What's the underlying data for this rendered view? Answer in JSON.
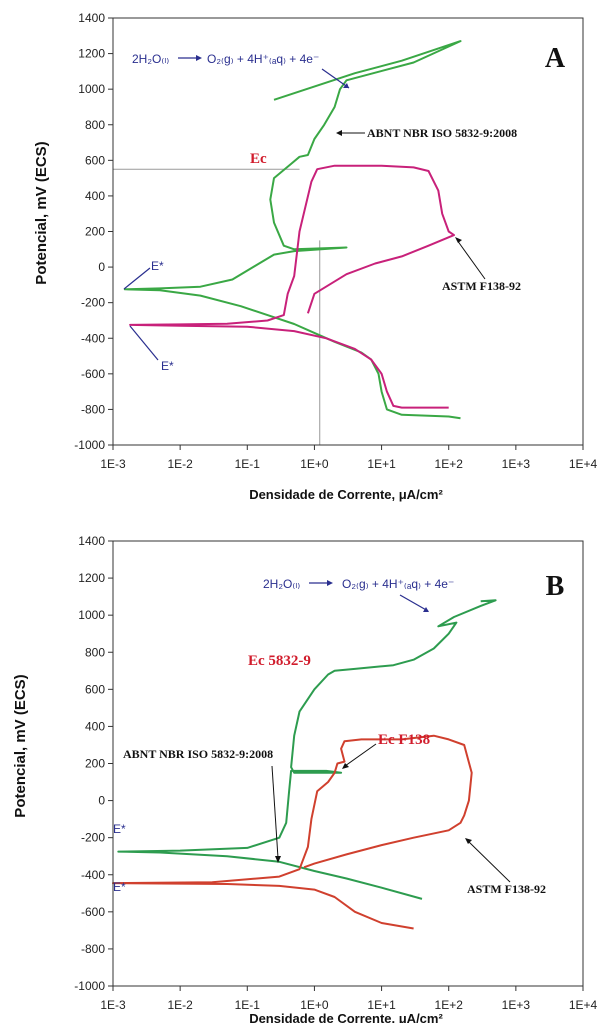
{
  "chart_data": [
    {
      "panel": "A",
      "type": "line",
      "panel_label": "A",
      "xlabel": "Densidade de Corrente, μA/cm²",
      "ylabel": "Potencial, mV (ECS)",
      "xscale": "log",
      "xlim": [
        0.001,
        10000
      ],
      "ylim": [
        -1000,
        1400
      ],
      "xtick_labels": [
        "1E-3",
        "1E-2",
        "1E-1",
        "1E+0",
        "1E+1",
        "1E+2",
        "1E+3",
        "1E+4"
      ],
      "ytick_labels": [
        "-1000",
        "-800",
        "-600",
        "-400",
        "-200",
        "0",
        "200",
        "400",
        "600",
        "800",
        "1000",
        "1200",
        "1400"
      ],
      "colors": {
        "green": "#3aa845",
        "magenta": "#c8217a",
        "guide": "#9a9a9a"
      },
      "series": [
        {
          "name": "ABNT NBR ISO 5832-9:2008",
          "color": "#3aa845",
          "points": [
            [
              150,
              -850
            ],
            [
              100,
              -840
            ],
            [
              20,
              -830
            ],
            [
              12,
              -800
            ],
            [
              10,
              -700
            ],
            [
              9,
              -600
            ],
            [
              7,
              -520
            ],
            [
              5,
              -480
            ],
            [
              2,
              -420
            ],
            [
              1,
              -370
            ],
            [
              0.5,
              -320
            ],
            [
              0.2,
              -270
            ],
            [
              0.08,
              -220
            ],
            [
              0.02,
              -160
            ],
            [
              0.005,
              -130
            ],
            [
              0.0015,
              -125
            ],
            [
              0.005,
              -120
            ],
            [
              0.02,
              -110
            ],
            [
              0.06,
              -70
            ],
            [
              0.15,
              20
            ],
            [
              0.25,
              70
            ],
            [
              0.5,
              90
            ],
            [
              3,
              110
            ],
            [
              0.5,
              100
            ],
            [
              0.35,
              120
            ],
            [
              0.25,
              250
            ],
            [
              0.22,
              380
            ],
            [
              0.25,
              500
            ],
            [
              0.45,
              580
            ],
            [
              0.6,
              620
            ],
            [
              0.8,
              630
            ],
            [
              1,
              720
            ],
            [
              1.4,
              800
            ],
            [
              2,
              900
            ],
            [
              2.4,
              1000
            ],
            [
              3,
              1050
            ],
            [
              30,
              1150
            ],
            [
              150,
              1270
            ],
            [
              20,
              1160
            ],
            [
              4,
              1090
            ],
            [
              0.25,
              940
            ]
          ]
        },
        {
          "name": "ASTM F138-92",
          "color": "#c8217a",
          "points": [
            [
              100,
              -790
            ],
            [
              20,
              -790
            ],
            [
              15,
              -780
            ],
            [
              12,
              -700
            ],
            [
              10,
              -600
            ],
            [
              7,
              -520
            ],
            [
              4,
              -460
            ],
            [
              1.5,
              -400
            ],
            [
              0.5,
              -360
            ],
            [
              0.1,
              -335
            ],
            [
              0.01,
              -330
            ],
            [
              0.0018,
              -325
            ],
            [
              0.01,
              -322
            ],
            [
              0.05,
              -318
            ],
            [
              0.2,
              -300
            ],
            [
              0.35,
              -270
            ],
            [
              0.4,
              -150
            ],
            [
              0.5,
              -50
            ],
            [
              0.6,
              200
            ],
            [
              0.9,
              480
            ],
            [
              1.1,
              550
            ],
            [
              2,
              570
            ],
            [
              10,
              570
            ],
            [
              30,
              560
            ],
            [
              50,
              540
            ],
            [
              70,
              430
            ],
            [
              80,
              300
            ],
            [
              100,
              200
            ],
            [
              120,
              180
            ],
            [
              50,
              120
            ],
            [
              20,
              60
            ],
            [
              8,
              20
            ],
            [
              3,
              -40
            ],
            [
              1,
              -150
            ],
            [
              0.8,
              -260
            ]
          ]
        }
      ],
      "annotations": {
        "reaction_left": "2H₂O₍ₗ₎",
        "reaction_right": "O₂₍g₎ + 4H⁺₍ₐq₎ + 4e⁻",
        "label_abnt": "ABNT NBR ISO 5832-9:2008",
        "label_astm": "ASTM F138-92",
        "ec": "Ec",
        "estar_1": "E*",
        "estar_2": "E*"
      },
      "guides": {
        "ec_potential": 550,
        "ec_current": 1.2
      }
    },
    {
      "panel": "B",
      "type": "line",
      "panel_label": "B",
      "xlabel": "Densidade de Corrente, μA/cm²",
      "ylabel": "Potencial, mV (ECS)",
      "xscale": "log",
      "xlim": [
        0.001,
        10000
      ],
      "ylim": [
        -1000,
        1400
      ],
      "xtick_labels": [
        "1E-3",
        "1E-2",
        "1E-1",
        "1E+0",
        "1E+1",
        "1E+2",
        "1E+3",
        "1E+4"
      ],
      "ytick_labels": [
        "-1000",
        "-800",
        "-600",
        "-400",
        "-200",
        "0",
        "200",
        "400",
        "600",
        "800",
        "1000",
        "1200",
        "1400"
      ],
      "colors": {
        "green": "#2d9c4f",
        "red": "#d0402e"
      },
      "series": [
        {
          "name": "ABNT NBR ISO 5832-9:2008",
          "color": "#2d9c4f",
          "points": [
            [
              40,
              -530
            ],
            [
              10,
              -470
            ],
            [
              3,
              -420
            ],
            [
              1,
              -380
            ],
            [
              0.3,
              -330
            ],
            [
              0.05,
              -300
            ],
            [
              0.005,
              -280
            ],
            [
              0.0012,
              -275
            ],
            [
              0.01,
              -270
            ],
            [
              0.1,
              -255
            ],
            [
              0.3,
              -200
            ],
            [
              0.38,
              -120
            ],
            [
              0.42,
              50
            ],
            [
              0.45,
              160
            ],
            [
              1.5,
              160
            ],
            [
              2.5,
              150
            ],
            [
              0.5,
              150
            ],
            [
              0.45,
              180
            ],
            [
              0.5,
              350
            ],
            [
              0.6,
              480
            ],
            [
              1,
              600
            ],
            [
              1.6,
              680
            ],
            [
              2,
              700
            ],
            [
              4,
              710
            ],
            [
              15,
              730
            ],
            [
              30,
              760
            ],
            [
              60,
              820
            ],
            [
              100,
              900
            ],
            [
              130,
              960
            ],
            [
              70,
              940
            ],
            [
              120,
              990
            ],
            [
              300,
              1050
            ],
            [
              500,
              1080
            ],
            [
              300,
              1075
            ]
          ]
        },
        {
          "name": "ASTM F138-92",
          "color": "#d0402e",
          "points": [
            [
              30,
              -690
            ],
            [
              10,
              -660
            ],
            [
              4,
              -600
            ],
            [
              2,
              -520
            ],
            [
              1,
              -480
            ],
            [
              0.3,
              -460
            ],
            [
              0.05,
              -450
            ],
            [
              0.001,
              -445
            ],
            [
              0.03,
              -440
            ],
            [
              0.3,
              -410
            ],
            [
              0.6,
              -370
            ],
            [
              0.8,
              -250
            ],
            [
              0.9,
              -100
            ],
            [
              1.1,
              50
            ],
            [
              1.6,
              100
            ],
            [
              2,
              150
            ],
            [
              2.2,
              200
            ],
            [
              2.8,
              210
            ],
            [
              2.5,
              280
            ],
            [
              2.8,
              320
            ],
            [
              5,
              330
            ],
            [
              20,
              330
            ],
            [
              60,
              350
            ],
            [
              100,
              330
            ],
            [
              170,
              300
            ],
            [
              220,
              150
            ],
            [
              200,
              0
            ],
            [
              170,
              -80
            ],
            [
              150,
              -120
            ],
            [
              100,
              -160
            ],
            [
              30,
              -200
            ],
            [
              10,
              -240
            ],
            [
              3,
              -290
            ],
            [
              1,
              -340
            ],
            [
              0.7,
              -360
            ]
          ]
        }
      ],
      "annotations": {
        "reaction_left": "2H₂O₍ₗ₎",
        "reaction_right": "O₂₍g₎ + 4H⁺₍ₐq₎ + 4e⁻",
        "label_abnt": "ABNT NBR ISO 5832-9:2008",
        "label_astm": "ASTM F138-92",
        "ec_5832": "Ec 5832-9",
        "ec_f138": "Ec F138",
        "estar_1": "E*",
        "estar_2": "E*"
      }
    }
  ]
}
